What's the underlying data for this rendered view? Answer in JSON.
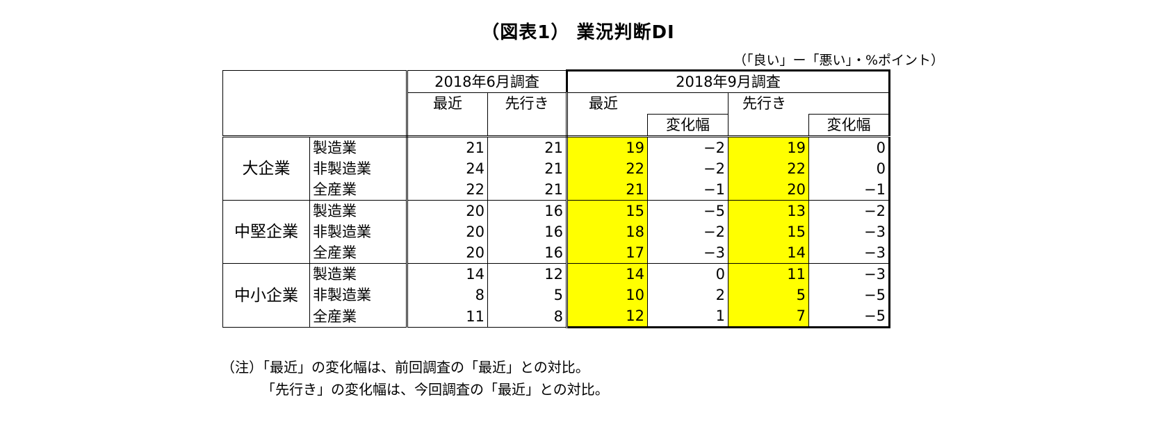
{
  "title": "（図表1） 業況判断DI",
  "unit": "（「良い」ー「悪い」・%ポイント）",
  "table": {
    "header": {
      "june_survey": "2018年6月調査",
      "sept_survey": "2018年9月調査",
      "recent": "最近",
      "forecast": "先行き",
      "change": "変化幅"
    },
    "groups": [
      {
        "name": "大企業",
        "rows": [
          {
            "sector": "製造業",
            "jun_recent": "21",
            "jun_forecast": "21",
            "sep_recent": "19",
            "sep_recent_change": "−2",
            "sep_forecast": "19",
            "sep_forecast_change": "0"
          },
          {
            "sector": "非製造業",
            "jun_recent": "24",
            "jun_forecast": "21",
            "sep_recent": "22",
            "sep_recent_change": "−2",
            "sep_forecast": "22",
            "sep_forecast_change": "0"
          },
          {
            "sector": "全産業",
            "jun_recent": "22",
            "jun_forecast": "21",
            "sep_recent": "21",
            "sep_recent_change": "−1",
            "sep_forecast": "20",
            "sep_forecast_change": "−1"
          }
        ]
      },
      {
        "name": "中堅企業",
        "rows": [
          {
            "sector": "製造業",
            "jun_recent": "20",
            "jun_forecast": "16",
            "sep_recent": "15",
            "sep_recent_change": "−5",
            "sep_forecast": "13",
            "sep_forecast_change": "−2"
          },
          {
            "sector": "非製造業",
            "jun_recent": "20",
            "jun_forecast": "16",
            "sep_recent": "18",
            "sep_recent_change": "−2",
            "sep_forecast": "15",
            "sep_forecast_change": "−3"
          },
          {
            "sector": "全産業",
            "jun_recent": "20",
            "jun_forecast": "16",
            "sep_recent": "17",
            "sep_recent_change": "−3",
            "sep_forecast": "14",
            "sep_forecast_change": "−3"
          }
        ]
      },
      {
        "name": "中小企業",
        "rows": [
          {
            "sector": "製造業",
            "jun_recent": "14",
            "jun_forecast": "12",
            "sep_recent": "14",
            "sep_recent_change": "0",
            "sep_forecast": "11",
            "sep_forecast_change": "−3"
          },
          {
            "sector": "非製造業",
            "jun_recent": "8",
            "jun_forecast": "5",
            "sep_recent": "10",
            "sep_recent_change": "2",
            "sep_forecast": "5",
            "sep_forecast_change": "−5"
          },
          {
            "sector": "全産業",
            "jun_recent": "11",
            "jun_forecast": "8",
            "sep_recent": "12",
            "sep_recent_change": "1",
            "sep_forecast": "7",
            "sep_forecast_change": "−5"
          }
        ]
      }
    ]
  },
  "notes": {
    "line1": "（注）「最近」の変化幅は、前回調査の「最近」との対比。",
    "line2": "「先行き」の変化幅は、今回調査の「最近」との対比。"
  },
  "colors": {
    "highlight": "#ffff00",
    "border": "#000000"
  }
}
